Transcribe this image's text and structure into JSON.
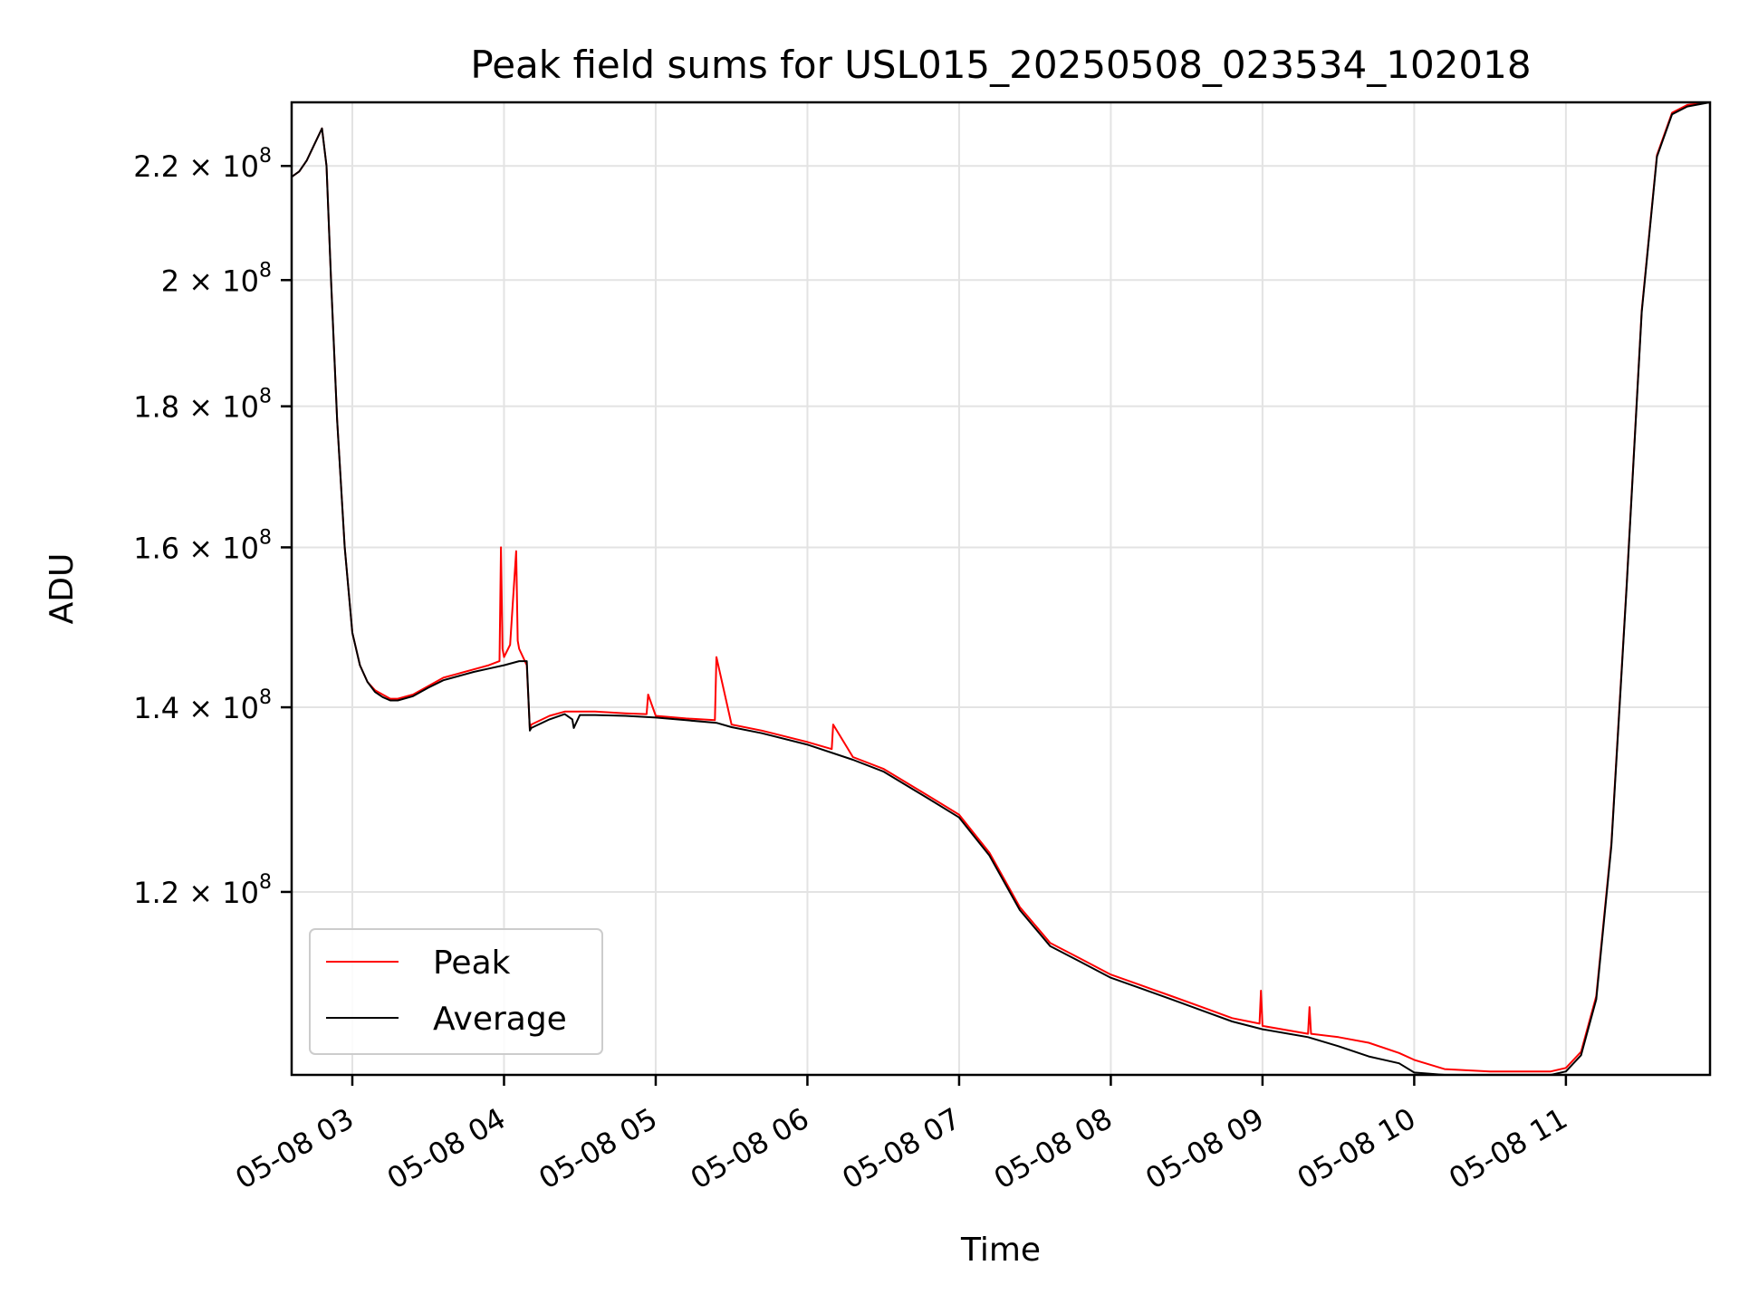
{
  "chart_data": {
    "type": "line",
    "title": "Peak field sums for USL015_20250508_023534_102018",
    "xlabel": "Time",
    "ylabel": "ADU",
    "yscale": "log",
    "grid": true,
    "legend_position": "lower-left",
    "x_ticks": [
      "05-08 03",
      "05-08 04",
      "05-08 05",
      "05-08 06",
      "05-08 07",
      "05-08 08",
      "05-08 09",
      "05-08 10",
      "05-08 11"
    ],
    "x_tick_hours": [
      3,
      4,
      5,
      6,
      7,
      8,
      9,
      10,
      11
    ],
    "xlim": [
      2.6,
      11.95
    ],
    "ylim": [
      103000000,
      232000000
    ],
    "y_ticks": [
      {
        "value": 120000000,
        "mantissa": "1.2",
        "base": "10",
        "exp": "8"
      },
      {
        "value": 140000000,
        "mantissa": "1.4",
        "base": "10",
        "exp": "8"
      },
      {
        "value": 160000000,
        "mantissa": "1.6",
        "base": "10",
        "exp": "8"
      },
      {
        "value": 180000000,
        "mantissa": "1.8",
        "base": "10",
        "exp": "8"
      },
      {
        "value": 200000000,
        "mantissa": "2",
        "base": "10",
        "exp": "8"
      },
      {
        "value": 220000000,
        "mantissa": "2.2",
        "base": "10",
        "exp": "8"
      }
    ],
    "series": [
      {
        "name": "Peak",
        "color": "#ff0000",
        "x": [
          2.6,
          2.65,
          2.7,
          2.75,
          2.8,
          2.83,
          2.86,
          2.9,
          2.95,
          3.0,
          3.05,
          3.1,
          3.15,
          3.2,
          3.25,
          3.3,
          3.4,
          3.5,
          3.6,
          3.7,
          3.8,
          3.9,
          3.97,
          3.98,
          3.99,
          4.0,
          4.04,
          4.08,
          4.09,
          4.1,
          4.15,
          4.17,
          4.18,
          4.3,
          4.4,
          4.5,
          4.6,
          4.8,
          4.94,
          4.95,
          5.0,
          5.2,
          5.39,
          5.4,
          5.5,
          5.7,
          6.0,
          6.16,
          6.17,
          6.3,
          6.5,
          6.8,
          7.0,
          7.2,
          7.4,
          7.6,
          7.8,
          8.0,
          8.2,
          8.4,
          8.6,
          8.8,
          8.98,
          8.99,
          9.0,
          9.3,
          9.31,
          9.32,
          9.5,
          9.7,
          9.9,
          10.0,
          10.2,
          10.5,
          10.9,
          11.0,
          11.1,
          11.2,
          11.3,
          11.4,
          11.5,
          11.6,
          11.7,
          11.8,
          11.95
        ],
        "y": [
          218000000,
          219000000,
          221000000,
          224000000,
          227000000,
          220000000,
          200000000,
          178000000,
          160000000,
          149000000,
          145000000,
          143000000,
          142000000,
          141500000,
          141000000,
          141000000,
          141500000,
          142500000,
          143500000,
          144000000,
          144500000,
          145000000,
          145500000,
          160000000,
          147000000,
          146000000,
          147500000,
          159500000,
          148000000,
          147000000,
          145000000,
          137500000,
          138000000,
          139000000,
          139500000,
          139500000,
          139500000,
          139300000,
          139200000,
          141500000,
          139000000,
          138700000,
          138500000,
          146000000,
          138000000,
          137300000,
          136000000,
          135200000,
          138000000,
          134300000,
          133000000,
          130000000,
          128000000,
          124000000,
          118500000,
          115000000,
          113500000,
          112000000,
          111000000,
          110000000,
          109000000,
          108000000,
          107500000,
          110500000,
          107300000,
          106600000,
          109000000,
          106600000,
          106300000,
          105800000,
          104900000,
          104300000,
          103500000,
          103300000,
          103300000,
          103600000,
          105000000,
          110000000,
          125000000,
          155000000,
          195000000,
          222000000,
          230000000,
          231500000,
          232000000
        ]
      },
      {
        "name": "Average",
        "color": "#000000",
        "x": [
          2.6,
          2.65,
          2.7,
          2.75,
          2.8,
          2.83,
          2.86,
          2.9,
          2.95,
          3.0,
          3.05,
          3.1,
          3.15,
          3.2,
          3.25,
          3.3,
          3.4,
          3.5,
          3.6,
          3.7,
          3.8,
          3.9,
          4.0,
          4.1,
          4.15,
          4.17,
          4.18,
          4.3,
          4.4,
          4.45,
          4.46,
          4.5,
          4.6,
          4.8,
          5.0,
          5.2,
          5.4,
          5.5,
          5.7,
          6.0,
          6.3,
          6.5,
          6.8,
          7.0,
          7.2,
          7.4,
          7.6,
          7.8,
          8.0,
          8.2,
          8.4,
          8.6,
          8.8,
          9.0,
          9.3,
          9.5,
          9.7,
          9.9,
          10.0,
          10.2,
          10.5,
          10.9,
          11.0,
          11.1,
          11.2,
          11.3,
          11.4,
          11.5,
          11.6,
          11.7,
          11.8,
          11.95
        ],
        "y": [
          218000000,
          219000000,
          221000000,
          224000000,
          227000000,
          220000000,
          200000000,
          178000000,
          160000000,
          149000000,
          145000000,
          143000000,
          141800000,
          141200000,
          140800000,
          140800000,
          141300000,
          142300000,
          143200000,
          143700000,
          144200000,
          144600000,
          145000000,
          145500000,
          145500000,
          137300000,
          137600000,
          138600000,
          139200000,
          138600000,
          137600000,
          139100000,
          139100000,
          139000000,
          138800000,
          138500000,
          138200000,
          137700000,
          137000000,
          135700000,
          134000000,
          132700000,
          129700000,
          127700000,
          123700000,
          118200000,
          114700000,
          113200000,
          111700000,
          110700000,
          109700000,
          108700000,
          107700000,
          107000000,
          106300000,
          105500000,
          104600000,
          104000000,
          103200000,
          103000000,
          103000000,
          103000000,
          103300000,
          104700000,
          109700000,
          124700000,
          154700000,
          194700000,
          221700000,
          229700000,
          231200000,
          232000000
        ]
      }
    ]
  }
}
